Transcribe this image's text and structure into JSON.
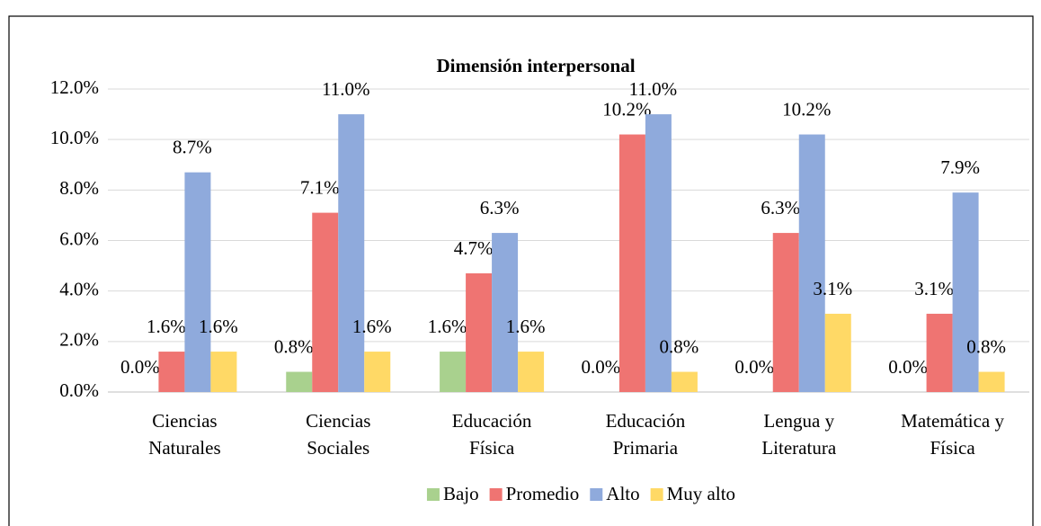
{
  "chart_data": {
    "type": "bar",
    "title": "Dimensión interpersonal",
    "categories": [
      "Ciencias Naturales",
      "Ciencias Sociales",
      "Educación Física",
      "Educación Primaria",
      "Lengua y Literatura",
      "Matemática y Física"
    ],
    "series": [
      {
        "name": "Bajo",
        "color": "#a9d18e",
        "values": [
          0,
          0.8,
          1.6,
          0,
          0,
          0
        ],
        "value_labels": [
          "0.0%",
          "0.8%",
          "1.6%",
          "0.0%",
          "0.0%",
          "0.0%"
        ]
      },
      {
        "name": "Promedio",
        "color": "#ef7472",
        "values": [
          1.6,
          7.1,
          4.7,
          10.2,
          6.3,
          3.1
        ],
        "value_labels": [
          "1.6%",
          "7.1%",
          "4.7%",
          "10.2%",
          "6.3%",
          "3.1%"
        ]
      },
      {
        "name": "Alto",
        "color": "#8faadc",
        "values": [
          8.7,
          11.0,
          6.3,
          11.0,
          10.2,
          7.9
        ],
        "value_labels": [
          "8.7%",
          "11.0%",
          "6.3%",
          "11.0%",
          "10.2%",
          "7.9%"
        ]
      },
      {
        "name": "Muy alto",
        "color": "#ffd966",
        "values": [
          1.6,
          1.6,
          1.6,
          0.8,
          3.1,
          0.8
        ],
        "value_labels": [
          "1.6%",
          "1.6%",
          "1.6%",
          "0.8%",
          "3.1%",
          "0.8%"
        ]
      }
    ],
    "ylim": [
      0,
      12
    ],
    "yticks": [
      {
        "value": 0,
        "label": "0.0%"
      },
      {
        "value": 2,
        "label": "2.0%"
      },
      {
        "value": 4,
        "label": "4.0%"
      },
      {
        "value": 6,
        "label": "6.0%"
      },
      {
        "value": 8,
        "label": "8.0%"
      },
      {
        "value": 10,
        "label": "10.0%"
      },
      {
        "value": 12,
        "label": "12.0%"
      }
    ],
    "grid": true,
    "legend": "bottom"
  }
}
